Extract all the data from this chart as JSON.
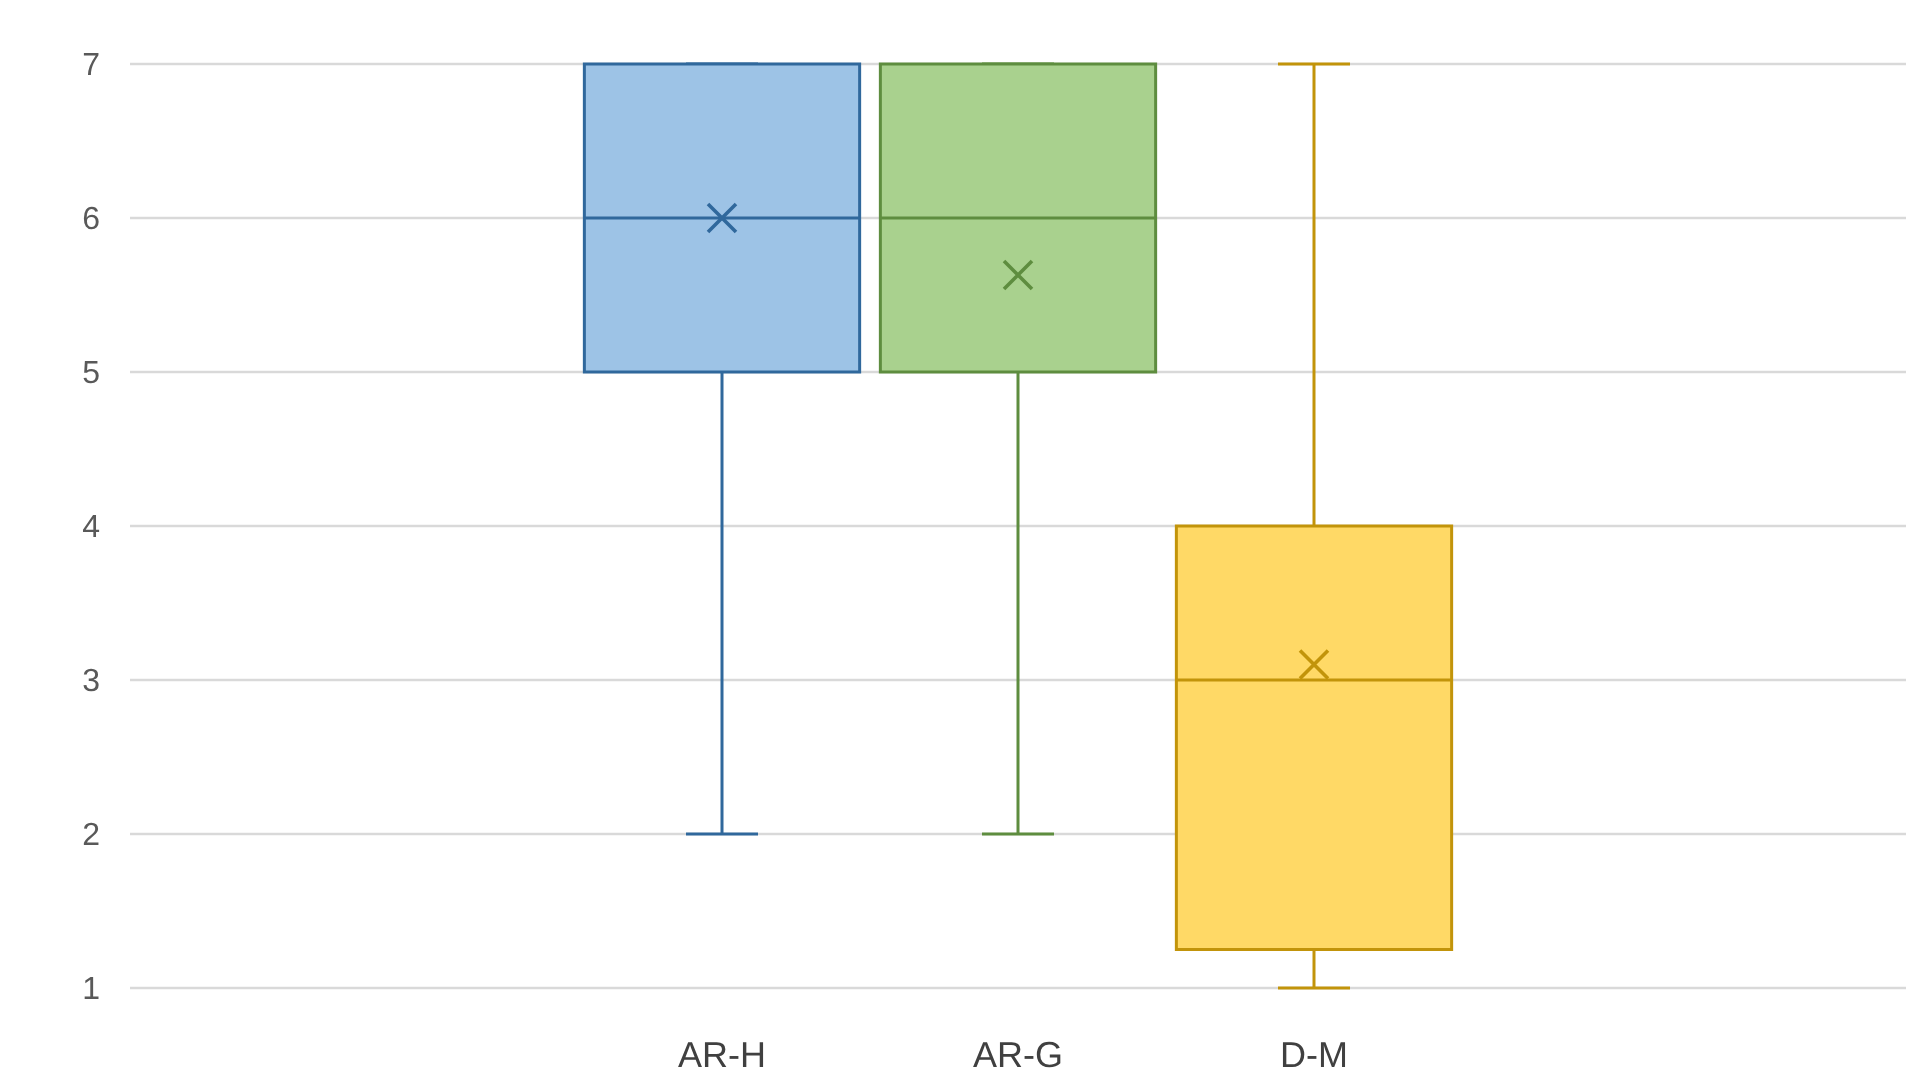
{
  "chart_data": {
    "type": "box",
    "categories": [
      null,
      "AR-H",
      "AR-G",
      "D-M",
      null
    ],
    "boxes": [
      null,
      {
        "low": 2,
        "q1": 5,
        "median": 6,
        "q3": 7,
        "high": 7,
        "mean": 6
      },
      {
        "low": 2,
        "q1": 5,
        "median": 6,
        "q3": 7,
        "high": 7,
        "mean": 5.63
      },
      {
        "low": 1,
        "q1": 1.25,
        "median": 3,
        "q3": 4,
        "high": 7,
        "mean": 3.1
      },
      null
    ],
    "colors": [
      null,
      "#9dc3e6",
      "#a9d18e",
      "#ffd966",
      null
    ],
    "ylim": [
      1,
      7
    ],
    "yticks": [
      1,
      2,
      3,
      4,
      5,
      6,
      7
    ],
    "grid": "y"
  }
}
